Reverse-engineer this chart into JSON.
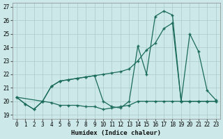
{
  "xlabel": "Humidex (Indice chaleur)",
  "bg_color": "#cce8e8",
  "grid_color": "#aacccc",
  "line_color": "#1a6b5a",
  "ylim": [
    18.7,
    27.3
  ],
  "xlim": [
    -0.5,
    23.5
  ],
  "yticks": [
    19,
    20,
    21,
    22,
    23,
    24,
    25,
    26,
    27
  ],
  "xticks": [
    0,
    1,
    2,
    3,
    4,
    5,
    6,
    7,
    8,
    9,
    10,
    11,
    12,
    13,
    14,
    15,
    16,
    17,
    18,
    19,
    20,
    21,
    22,
    23
  ],
  "line1_x": [
    0,
    1,
    2,
    3,
    4,
    5,
    6,
    7,
    8,
    9,
    10,
    11,
    12,
    13,
    14,
    15,
    16,
    17,
    18,
    19,
    20,
    21,
    22,
    23
  ],
  "line1_y": [
    20.3,
    19.8,
    19.4,
    20.0,
    21.1,
    21.5,
    21.6,
    21.7,
    21.8,
    21.9,
    20.0,
    19.6,
    19.5,
    20.0,
    24.1,
    22.0,
    26.3,
    26.7,
    26.4,
    20.0,
    25.0,
    23.7,
    20.8,
    20.1
  ],
  "line2_x": [
    3,
    4,
    5,
    6,
    7,
    8,
    9,
    10,
    11,
    12,
    13,
    14,
    15,
    16,
    17,
    18,
    19,
    20,
    21,
    22,
    23
  ],
  "line2_y": [
    20.0,
    21.1,
    21.5,
    21.6,
    21.7,
    21.8,
    21.9,
    22.0,
    22.1,
    22.2,
    22.4,
    23.0,
    23.8,
    24.3,
    25.4,
    25.8,
    20.0,
    20.0,
    20.0,
    20.0,
    20.0
  ],
  "line3_x": [
    0,
    1,
    2,
    3,
    4,
    5,
    6,
    7,
    8,
    9,
    10,
    11,
    12,
    13,
    14,
    15,
    16,
    17,
    18,
    19,
    20,
    21,
    22,
    23
  ],
  "line3_y": [
    20.3,
    19.8,
    19.4,
    20.0,
    19.9,
    19.7,
    19.7,
    19.7,
    19.6,
    19.6,
    19.4,
    19.5,
    19.6,
    19.7,
    20.0,
    20.0,
    20.0,
    20.0,
    20.0,
    20.0,
    20.0,
    20.0,
    20.0,
    20.0
  ]
}
